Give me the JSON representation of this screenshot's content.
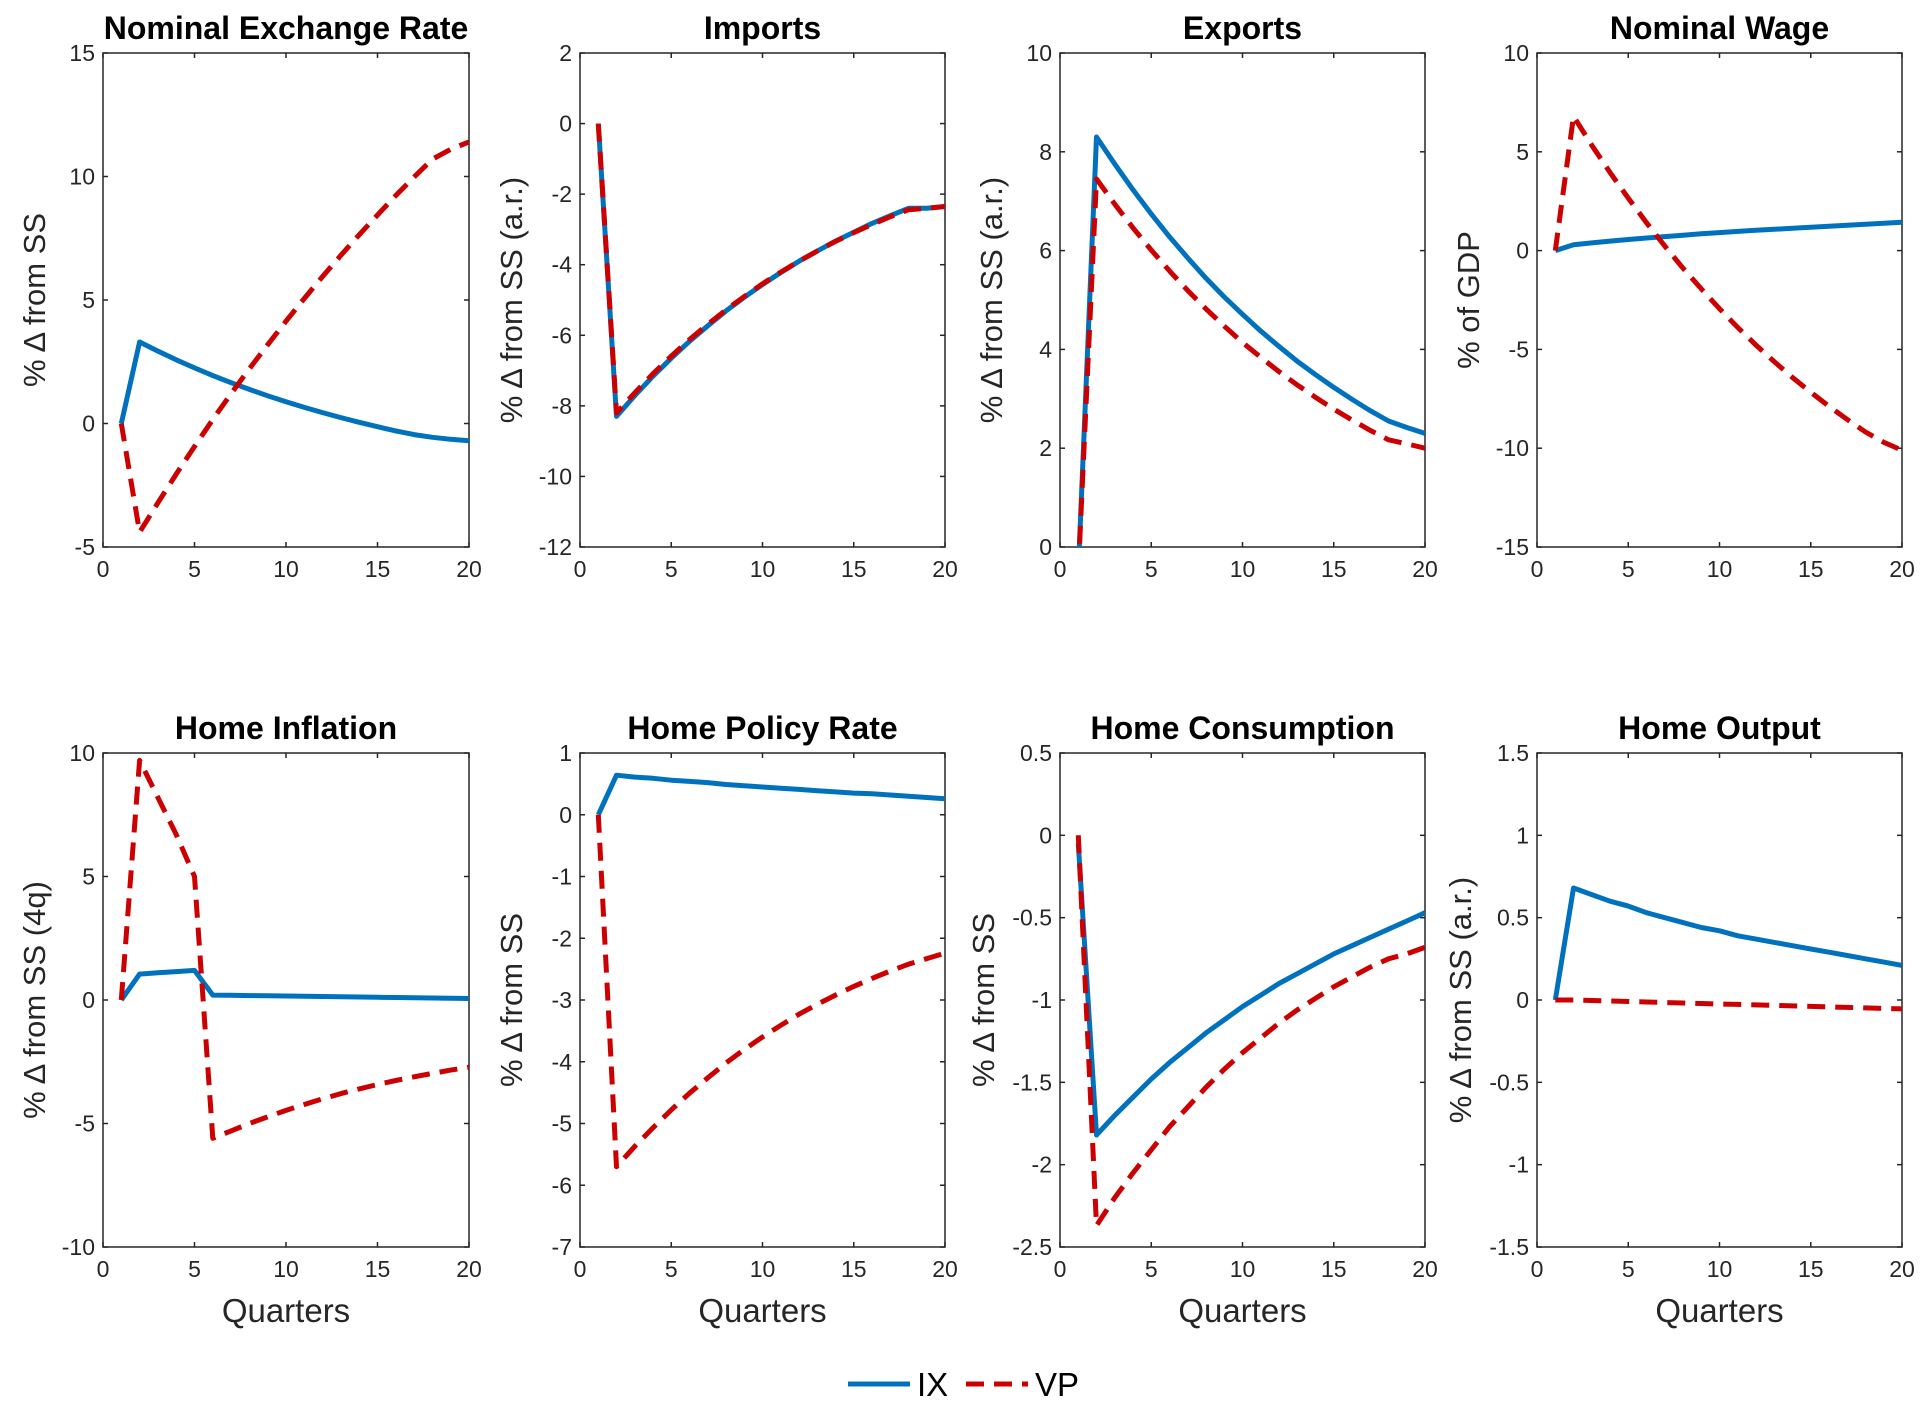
{
  "legend": {
    "ix_label": "IX",
    "vp_label": "VP",
    "ix_color": "#0072BD",
    "vp_color": "#CC0000",
    "placement": "bottom-center"
  },
  "colors": {
    "ix": "#0072BD",
    "vp": "#CC0000"
  },
  "chart_data": [
    {
      "type": "line",
      "title": "Nominal Exchange Rate",
      "xlabel": "",
      "ylabel": "% Δ from SS",
      "xlim": [
        0,
        20
      ],
      "ylim": [
        -5,
        15
      ],
      "xticks": [
        "0",
        "5",
        "10",
        "15",
        "20"
      ],
      "yticks": [
        "-5",
        "0",
        "5",
        "10",
        "15"
      ],
      "x": [
        1,
        2,
        3,
        4,
        5,
        6,
        7,
        8,
        9,
        10,
        11,
        12,
        13,
        14,
        15,
        16,
        17,
        18,
        19,
        20
      ],
      "series": [
        {
          "name": "IX",
          "values": [
            0,
            3.3,
            2.93,
            2.58,
            2.25,
            1.94,
            1.65,
            1.38,
            1.12,
            0.88,
            0.65,
            0.44,
            0.24,
            0.05,
            -0.13,
            -0.3,
            -0.45,
            -0.56,
            -0.64,
            -0.7
          ]
        },
        {
          "name": "VP",
          "values": [
            0,
            -4.4,
            -3.21,
            -2.05,
            -0.93,
            0.16,
            1.21,
            2.22,
            3.19,
            4.14,
            5.06,
            5.95,
            6.81,
            7.64,
            8.44,
            9.23,
            9.98,
            10.7,
            11.1,
            11.4
          ]
        }
      ]
    },
    {
      "type": "line",
      "title": "Imports",
      "xlabel": "",
      "ylabel": "% Δ from SS (a.r.)",
      "xlim": [
        0,
        20
      ],
      "ylim": [
        -12,
        2
      ],
      "xticks": [
        "0",
        "5",
        "10",
        "15",
        "20"
      ],
      "yticks": [
        "-12",
        "-10",
        "-8",
        "-6",
        "-4",
        "-2",
        "0",
        "2"
      ],
      "x": [
        1,
        2,
        3,
        4,
        5,
        6,
        7,
        8,
        9,
        10,
        11,
        12,
        13,
        14,
        15,
        16,
        17,
        18,
        19,
        20
      ],
      "series": [
        {
          "name": "IX",
          "values": [
            0,
            -8.3,
            -7.71,
            -7.16,
            -6.65,
            -6.17,
            -5.73,
            -5.31,
            -4.92,
            -4.56,
            -4.22,
            -3.9,
            -3.61,
            -3.33,
            -3.08,
            -2.83,
            -2.61,
            -2.4,
            -2.4,
            -2.35
          ]
        },
        {
          "name": "VP",
          "values": [
            0,
            -8.2,
            -7.63,
            -7.09,
            -6.59,
            -6.12,
            -5.69,
            -5.28,
            -4.9,
            -4.54,
            -4.21,
            -3.9,
            -3.61,
            -3.34,
            -3.09,
            -2.86,
            -2.64,
            -2.44,
            -2.4,
            -2.35
          ]
        }
      ]
    },
    {
      "type": "line",
      "title": "Exports",
      "xlabel": "",
      "ylabel": "% Δ from SS (a.r.)",
      "xlim": [
        0,
        20
      ],
      "ylim": [
        0,
        10
      ],
      "xticks": [
        "0",
        "5",
        "10",
        "15",
        "20"
      ],
      "yticks": [
        "0",
        "2",
        "4",
        "6",
        "8",
        "10"
      ],
      "x": [
        1,
        2,
        3,
        4,
        5,
        6,
        7,
        8,
        9,
        10,
        11,
        12,
        13,
        14,
        15,
        16,
        17,
        18,
        19,
        20
      ],
      "series": [
        {
          "name": "IX",
          "values": [
            -0.5,
            8.3,
            7.75,
            7.23,
            6.74,
            6.28,
            5.85,
            5.44,
            5.06,
            4.71,
            4.37,
            4.06,
            3.76,
            3.49,
            3.23,
            2.99,
            2.76,
            2.55,
            2.42,
            2.3
          ]
        },
        {
          "name": "VP",
          "values": [
            -0.5,
            7.45,
            6.94,
            6.46,
            6.01,
            5.59,
            5.19,
            4.82,
            4.47,
            4.14,
            3.84,
            3.55,
            3.28,
            3.03,
            2.79,
            2.57,
            2.36,
            2.17,
            2.09,
            2.0
          ]
        }
      ]
    },
    {
      "type": "line",
      "title": "Nominal Wage",
      "xlabel": "",
      "ylabel": "% of GDP",
      "xlim": [
        0,
        20
      ],
      "ylim": [
        -15,
        10
      ],
      "xticks": [
        "0",
        "5",
        "10",
        "15",
        "20"
      ],
      "yticks": [
        "-15",
        "-10",
        "-5",
        "0",
        "5",
        "10"
      ],
      "x": [
        1,
        2,
        3,
        4,
        5,
        6,
        7,
        8,
        9,
        10,
        11,
        12,
        13,
        14,
        15,
        16,
        17,
        18,
        19,
        20
      ],
      "series": [
        {
          "name": "IX",
          "values": [
            0,
            0.3,
            0.39,
            0.48,
            0.56,
            0.64,
            0.71,
            0.78,
            0.85,
            0.91,
            0.97,
            1.03,
            1.08,
            1.13,
            1.18,
            1.23,
            1.28,
            1.33,
            1.38,
            1.43
          ]
        },
        {
          "name": "VP",
          "values": [
            0,
            6.8,
            5.33,
            3.96,
            2.65,
            1.41,
            0.23,
            -0.89,
            -1.94,
            -2.94,
            -3.89,
            -4.78,
            -5.62,
            -6.42,
            -7.17,
            -7.88,
            -8.55,
            -9.18,
            -9.7,
            -10.1
          ]
        }
      ]
    },
    {
      "type": "line",
      "title": "Home Inflation",
      "xlabel": "Quarters",
      "ylabel": "% Δ from SS (4q)",
      "xlim": [
        0,
        20
      ],
      "ylim": [
        -10,
        10
      ],
      "xticks": [
        "0",
        "5",
        "10",
        "15",
        "20"
      ],
      "yticks": [
        "-10",
        "-5",
        "0",
        "5",
        "10"
      ],
      "x": [
        1,
        2,
        3,
        4,
        5,
        6,
        7,
        8,
        9,
        10,
        11,
        12,
        13,
        14,
        15,
        16,
        17,
        18,
        19,
        20
      ],
      "series": [
        {
          "name": "IX",
          "values": [
            0,
            1.05,
            1.1,
            1.15,
            1.2,
            0.2,
            0.19,
            0.18,
            0.17,
            0.16,
            0.15,
            0.14,
            0.13,
            0.12,
            0.11,
            0.1,
            0.09,
            0.08,
            0.07,
            0.06
          ]
        },
        {
          "name": "VP",
          "values": [
            0,
            9.7,
            8.2,
            6.7,
            5.0,
            -5.6,
            -5.3,
            -5.0,
            -4.73,
            -4.47,
            -4.23,
            -4.0,
            -3.79,
            -3.6,
            -3.42,
            -3.26,
            -3.11,
            -2.97,
            -2.84,
            -2.72
          ]
        }
      ]
    },
    {
      "type": "line",
      "title": "Home Policy Rate",
      "xlabel": "Quarters",
      "ylabel": "% Δ from SS",
      "xlim": [
        0,
        20
      ],
      "ylim": [
        -7,
        1
      ],
      "xticks": [
        "0",
        "5",
        "10",
        "15",
        "20"
      ],
      "yticks": [
        "-7",
        "-6",
        "-5",
        "-4",
        "-3",
        "-2",
        "-1",
        "0",
        "1"
      ],
      "x": [
        1,
        2,
        3,
        4,
        5,
        6,
        7,
        8,
        9,
        10,
        11,
        12,
        13,
        14,
        15,
        16,
        17,
        18,
        19,
        20
      ],
      "series": [
        {
          "name": "IX",
          "values": [
            0,
            0.64,
            0.61,
            0.59,
            0.56,
            0.54,
            0.52,
            0.49,
            0.47,
            0.45,
            0.43,
            0.41,
            0.39,
            0.37,
            0.35,
            0.34,
            0.32,
            0.3,
            0.28,
            0.26
          ]
        },
        {
          "name": "VP",
          "values": [
            0,
            -5.7,
            -5.37,
            -5.07,
            -4.78,
            -4.51,
            -4.26,
            -4.02,
            -3.8,
            -3.6,
            -3.41,
            -3.23,
            -3.07,
            -2.92,
            -2.78,
            -2.65,
            -2.53,
            -2.42,
            -2.33,
            -2.24
          ]
        }
      ]
    },
    {
      "type": "line",
      "title": "Home Consumption",
      "xlabel": "Quarters",
      "ylabel": "% Δ from SS",
      "xlim": [
        0,
        20
      ],
      "ylim": [
        -2.5,
        0.5
      ],
      "xticks": [
        "0",
        "5",
        "10",
        "15",
        "20"
      ],
      "yticks": [
        "-2.5",
        "-2",
        "-1.5",
        "-1",
        "-0.5",
        "0",
        "0.5"
      ],
      "x": [
        1,
        2,
        3,
        4,
        5,
        6,
        7,
        8,
        9,
        10,
        11,
        12,
        13,
        14,
        15,
        16,
        17,
        18,
        19,
        20
      ],
      "series": [
        {
          "name": "IX",
          "values": [
            -0.05,
            -1.82,
            -1.7,
            -1.59,
            -1.48,
            -1.38,
            -1.29,
            -1.2,
            -1.12,
            -1.04,
            -0.97,
            -0.9,
            -0.84,
            -0.78,
            -0.72,
            -0.67,
            -0.62,
            -0.57,
            -0.52,
            -0.47
          ]
        },
        {
          "name": "VP",
          "values": [
            0,
            -2.37,
            -2.2,
            -2.05,
            -1.91,
            -1.77,
            -1.65,
            -1.53,
            -1.42,
            -1.32,
            -1.23,
            -1.14,
            -1.06,
            -0.99,
            -0.92,
            -0.86,
            -0.8,
            -0.75,
            -0.72,
            -0.68
          ]
        }
      ]
    },
    {
      "type": "line",
      "title": "Home Output",
      "xlabel": "Quarters",
      "ylabel": "% Δ from SS (a.r.)",
      "xlim": [
        0,
        20
      ],
      "ylim": [
        -1.5,
        1.5
      ],
      "xticks": [
        "0",
        "5",
        "10",
        "15",
        "20"
      ],
      "yticks": [
        "-1.5",
        "-1",
        "-0.5",
        "0",
        "0.5",
        "1",
        "1.5"
      ],
      "x": [
        1,
        2,
        3,
        4,
        5,
        6,
        7,
        8,
        9,
        10,
        11,
        12,
        13,
        14,
        15,
        16,
        17,
        18,
        19,
        20
      ],
      "series": [
        {
          "name": "IX",
          "values": [
            0,
            0.68,
            0.64,
            0.6,
            0.57,
            0.53,
            0.5,
            0.47,
            0.44,
            0.42,
            0.39,
            0.37,
            0.35,
            0.33,
            0.31,
            0.29,
            0.27,
            0.25,
            0.23,
            0.21
          ]
        },
        {
          "name": "VP",
          "values": [
            0,
            0,
            -0.003,
            -0.006,
            -0.009,
            -0.012,
            -0.015,
            -0.018,
            -0.021,
            -0.024,
            -0.027,
            -0.03,
            -0.033,
            -0.036,
            -0.039,
            -0.042,
            -0.045,
            -0.048,
            -0.051,
            -0.054
          ]
        }
      ]
    }
  ]
}
